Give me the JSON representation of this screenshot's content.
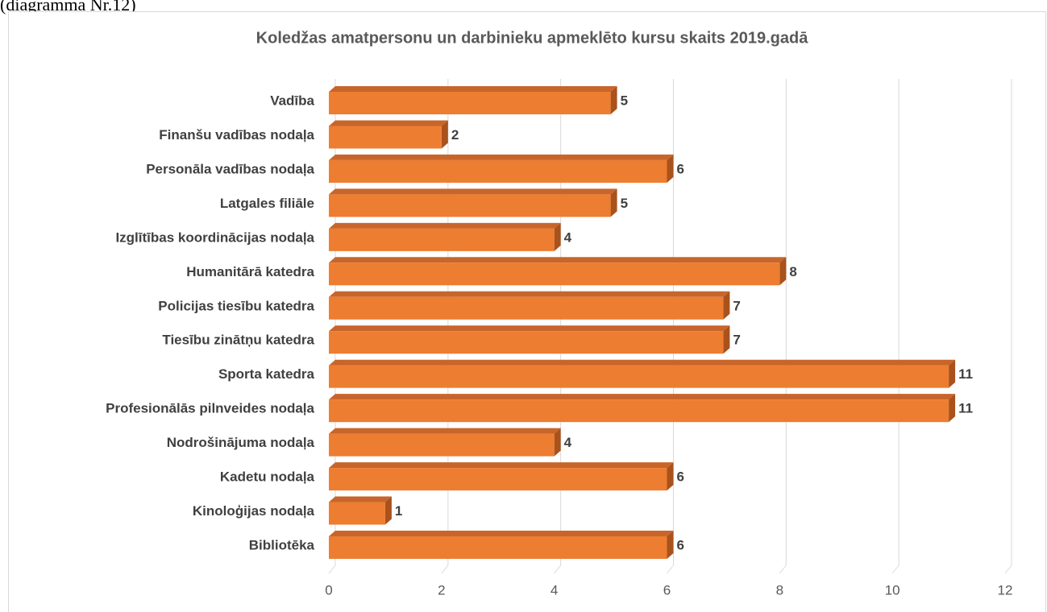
{
  "caption": "(diagramma Nr.12)",
  "chart_data": {
    "type": "bar3d_horizontal",
    "title": "Koledžas amatpersonu un darbinieku apmeklēto kursu skaits 2019.gadā",
    "categories": [
      "Vadība",
      "Finanšu vadības nodaļa",
      "Personāla vadības nodaļa",
      "Latgales filiāle",
      "Izglītības koordinācijas nodaļa",
      "Humanitārā katedra",
      "Policijas tiesību katedra",
      "Tiesību zinātņu katedra",
      "Sporta katedra",
      "Profesionālās pilnveides nodaļa",
      "Nodrošinājuma nodaļa",
      "Kadetu nodaļa",
      "Kinoloģijas nodaļa",
      "Bibliotēka"
    ],
    "values": [
      5,
      2,
      6,
      5,
      4,
      8,
      7,
      7,
      11,
      11,
      4,
      6,
      1,
      6
    ],
    "color": "#ed7d31",
    "xlim": [
      0,
      12
    ],
    "xticks": [
      0,
      2,
      4,
      6,
      8,
      10,
      12
    ],
    "grid": true
  }
}
